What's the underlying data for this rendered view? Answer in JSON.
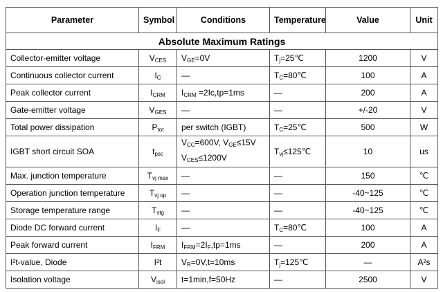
{
  "header": [
    "Parameter",
    "Symbol",
    "Conditions",
    "Temperature",
    "Value",
    "Unit"
  ],
  "section_title": "Absolute Maximum Ratings",
  "rows": [
    {
      "parameter": "Collector-emitter voltage",
      "symbol": [
        {
          "t": "V"
        },
        {
          "sub": "CES"
        }
      ],
      "conditions": [
        [
          {
            "t": "V"
          },
          {
            "sub": "GE"
          },
          {
            "t": "=0V"
          }
        ]
      ],
      "temperature": [
        {
          "t": "T"
        },
        {
          "sub": "j"
        },
        {
          "t": "=25℃"
        }
      ],
      "value": "1200",
      "unit": "V"
    },
    {
      "parameter": "Continuous collector current",
      "symbol": [
        {
          "t": "I"
        },
        {
          "sub": "C"
        }
      ],
      "conditions": [
        [
          {
            "t": "—"
          }
        ]
      ],
      "temperature": [
        {
          "t": "T"
        },
        {
          "sub": "C"
        },
        {
          "t": "=80℃"
        }
      ],
      "value": "100",
      "unit": "A"
    },
    {
      "parameter": "Peak collector current",
      "symbol": [
        {
          "t": "I"
        },
        {
          "sub": "CRM"
        }
      ],
      "conditions": [
        [
          {
            "t": "I"
          },
          {
            "sub": "CRM"
          },
          {
            "t": " =2Ic,tp=1ms"
          }
        ]
      ],
      "temperature": [
        {
          "t": "—"
        }
      ],
      "value": "200",
      "unit": "A"
    },
    {
      "parameter": "Gate-emitter voltage",
      "symbol": [
        {
          "t": "V"
        },
        {
          "sub": "GES"
        }
      ],
      "conditions": [
        [
          {
            "t": "—"
          }
        ]
      ],
      "temperature": [
        {
          "t": "—"
        }
      ],
      "value": "+/-20",
      "unit": "V"
    },
    {
      "parameter": "Total power dissipation",
      "symbol": [
        {
          "t": "P"
        },
        {
          "sub": "tot"
        }
      ],
      "conditions": [
        [
          {
            "t": "per switch (IGBT)"
          }
        ]
      ],
      "temperature": [
        {
          "t": "T"
        },
        {
          "sub": "C"
        },
        {
          "t": "=25℃"
        }
      ],
      "value": "500",
      "unit": "W"
    },
    {
      "parameter": "IGBT short circuit SOA",
      "symbol": [
        {
          "t": "t"
        },
        {
          "sub": "psc"
        }
      ],
      "conditions": [
        [
          {
            "t": "V"
          },
          {
            "sub": "CC"
          },
          {
            "t": "=600V, V"
          },
          {
            "sub": "GE"
          },
          {
            "t": "≤15V"
          }
        ],
        [
          {
            "t": "V"
          },
          {
            "sub": "CES"
          },
          {
            "t": "≤1200V"
          }
        ]
      ],
      "temperature": [
        {
          "t": "T"
        },
        {
          "sub": "vj"
        },
        {
          "t": "≤125℃"
        }
      ],
      "value": "10",
      "unit": "us"
    },
    {
      "parameter": "Max. junction temperature",
      "symbol": [
        {
          "t": "T"
        },
        {
          "sub": "vj max"
        }
      ],
      "conditions": [
        [
          {
            "t": "—"
          }
        ]
      ],
      "temperature": [
        {
          "t": "—"
        }
      ],
      "value": "150",
      "unit": "℃"
    },
    {
      "parameter": "Operation junction temperature",
      "symbol": [
        {
          "t": "T"
        },
        {
          "sub": "vj op"
        }
      ],
      "conditions": [
        [
          {
            "t": "—"
          }
        ]
      ],
      "temperature": [
        {
          "t": "—"
        }
      ],
      "value": "-40~125",
      "unit": "℃"
    },
    {
      "parameter": "Storage temperature range",
      "symbol": [
        {
          "t": "T"
        },
        {
          "sub": "stg"
        }
      ],
      "conditions": [
        [
          {
            "t": "—"
          }
        ]
      ],
      "temperature": [
        {
          "t": "—"
        }
      ],
      "value": "-40~125",
      "unit": "℃"
    },
    {
      "parameter": "Diode DC forward current",
      "symbol": [
        {
          "t": "I"
        },
        {
          "sub": "F"
        }
      ],
      "conditions": [
        [
          {
            "t": "—"
          }
        ]
      ],
      "temperature": [
        {
          "t": "T"
        },
        {
          "sub": "C"
        },
        {
          "t": "=80℃"
        }
      ],
      "value": "100",
      "unit": "A"
    },
    {
      "parameter": "Peak forward current",
      "symbol": [
        {
          "t": "I"
        },
        {
          "sub": "FRM"
        }
      ],
      "conditions": [
        [
          {
            "t": "I"
          },
          {
            "sub": "FRM"
          },
          {
            "t": "=2I"
          },
          {
            "sub": "F"
          },
          {
            "t": ",tp=1ms"
          }
        ]
      ],
      "temperature": [
        {
          "t": "—"
        }
      ],
      "value": "200",
      "unit": "A"
    },
    {
      "parameter": "I²t-value, Diode",
      "symbol": [
        {
          "t": "I²t"
        }
      ],
      "conditions": [
        [
          {
            "t": "V"
          },
          {
            "sub": "R"
          },
          {
            "t": "=0V,t=10ms"
          }
        ]
      ],
      "temperature": [
        {
          "t": "T"
        },
        {
          "sub": "j"
        },
        {
          "t": "=125℃"
        }
      ],
      "value": "—",
      "unit": "A²s"
    },
    {
      "parameter": "Isolation voltage",
      "symbol": [
        {
          "t": "V"
        },
        {
          "sub": "isol"
        }
      ],
      "conditions": [
        [
          {
            "t": "t=1min,f=50Hz"
          }
        ]
      ],
      "temperature": [
        {
          "t": "—"
        }
      ],
      "value": "2500",
      "unit": "V"
    }
  ]
}
